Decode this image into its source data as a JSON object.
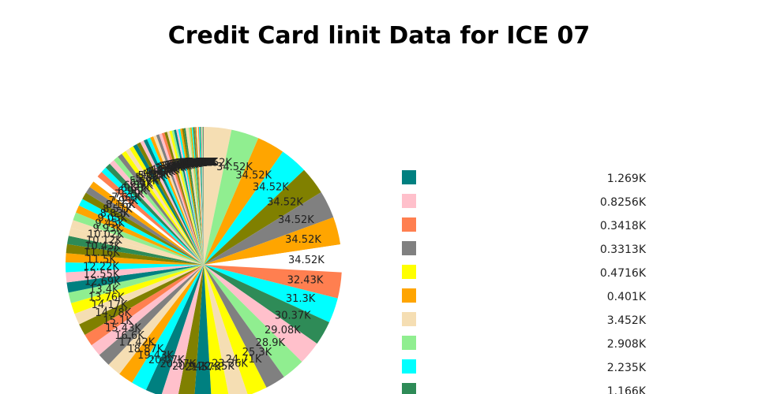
{
  "chart_data": {
    "type": "pie",
    "title": "Credit Card linit Data for ICE 07",
    "slice_palette": [
      "#f5deb3",
      "#90ee90",
      "#ffa500",
      "#00ffff",
      "#808000",
      "#808080",
      "#ffa500",
      "#ffffff",
      "#ff7f50",
      "#00ffff",
      "#2e8b57",
      "#ffc0cb",
      "#90ee90",
      "#808080",
      "#ffff00",
      "#f5deb3",
      "#ffff00",
      "#008080",
      "#808000",
      "#ffc0cb",
      "#008080",
      "#00ffff",
      "#ffa500",
      "#f5deb3",
      "#808080",
      "#ffc0cb",
      "#ff7f50",
      "#808000",
      "#f5deb3",
      "#ffff00",
      "#90ee90",
      "#008080",
      "#ffc0cb",
      "#00ffff",
      "#ffa500",
      "#808000",
      "#2e8b57",
      "#f5deb3"
    ],
    "slices": [
      {
        "label": "34.52K",
        "value": 34520
      },
      {
        "label": "34.52K",
        "value": 34520
      },
      {
        "label": "34.52K",
        "value": 34520
      },
      {
        "label": "34.52K",
        "value": 34520
      },
      {
        "label": "34.52K",
        "value": 34520
      },
      {
        "label": "34.52K",
        "value": 34520
      },
      {
        "label": "34.52K",
        "value": 34520
      },
      {
        "label": "34.52K",
        "value": 34520
      },
      {
        "label": "32.43K",
        "value": 32430
      },
      {
        "label": "31.3K",
        "value": 31300
      },
      {
        "label": "30.37K",
        "value": 30370
      },
      {
        "label": "29.08K",
        "value": 29080
      },
      {
        "label": "28.9K",
        "value": 28900
      },
      {
        "label": "25.3K",
        "value": 25300
      },
      {
        "label": "24.71K",
        "value": 24710
      },
      {
        "label": "23.36K",
        "value": 23360
      },
      {
        "label": "22.35K",
        "value": 22350
      },
      {
        "label": "21.57K",
        "value": 21570
      },
      {
        "label": "20.94K",
        "value": 20940
      },
      {
        "label": "20.37K",
        "value": 20370
      },
      {
        "label": "20.07K",
        "value": 20070
      },
      {
        "label": "19.43K",
        "value": 19430
      },
      {
        "label": "18.87K",
        "value": 18870
      },
      {
        "label": "17.42K",
        "value": 17420
      },
      {
        "label": "16.6K",
        "value": 16600
      },
      {
        "label": "15.43K",
        "value": 15430
      },
      {
        "label": "15.1K",
        "value": 15100
      },
      {
        "label": "14.78K",
        "value": 14780
      },
      {
        "label": "14.17K",
        "value": 14170
      },
      {
        "label": "13.76K",
        "value": 13760
      },
      {
        "label": "13.4K",
        "value": 13400
      },
      {
        "label": "12.69K",
        "value": 12690
      },
      {
        "label": "12.55K",
        "value": 12550
      },
      {
        "label": "12.22K",
        "value": 12220
      },
      {
        "label": "11.5K",
        "value": 11500
      },
      {
        "label": "11.16K",
        "value": 11160
      },
      {
        "label": "10.43K",
        "value": 10430
      },
      {
        "label": "10.12K",
        "value": 10120
      },
      {
        "label": "10.02K",
        "value": 10020
      },
      {
        "label": "9.93K",
        "value": 9930
      },
      {
        "label": "9.45K",
        "value": 9450
      },
      {
        "label": "9.05K",
        "value": 9050
      },
      {
        "label": "8.83K",
        "value": 8830
      },
      {
        "label": "8.51K",
        "value": 8510
      },
      {
        "label": "8.16K",
        "value": 8160
      },
      {
        "label": "7.93K",
        "value": 7930
      },
      {
        "label": "7.61K",
        "value": 7610
      },
      {
        "label": "7.25K",
        "value": 7250
      },
      {
        "label": "6.96K",
        "value": 6960
      },
      {
        "label": "6.68K",
        "value": 6680
      },
      {
        "label": "6.37K",
        "value": 6370
      },
      {
        "label": "6.1K",
        "value": 6100
      },
      {
        "label": "5.87K",
        "value": 5870
      },
      {
        "label": "5.6K",
        "value": 5600
      },
      {
        "label": "5.35K",
        "value": 5350
      },
      {
        "label": "5.11K",
        "value": 5110
      },
      {
        "label": "4.89K",
        "value": 4890
      },
      {
        "label": "4.68K",
        "value": 4680
      },
      {
        "label": "4.47K",
        "value": 4470
      },
      {
        "label": "4.27K",
        "value": 4270
      },
      {
        "label": "4.08K",
        "value": 4080
      },
      {
        "label": "3.9K",
        "value": 3900
      },
      {
        "label": "3.72K",
        "value": 3720
      },
      {
        "label": "3.55K",
        "value": 3550
      },
      {
        "label": "3.39K",
        "value": 3390
      },
      {
        "label": "3.24K",
        "value": 3240
      },
      {
        "label": "3.09K",
        "value": 3090
      },
      {
        "label": "2.95K",
        "value": 2950
      },
      {
        "label": "2.82K",
        "value": 2820
      },
      {
        "label": "2.69K",
        "value": 2690
      },
      {
        "label": "2.57K",
        "value": 2570
      },
      {
        "label": "2.45K",
        "value": 2450
      },
      {
        "label": "2.34K",
        "value": 2340
      },
      {
        "label": "2.23K",
        "value": 2230
      },
      {
        "label": "2.13K",
        "value": 2130
      },
      {
        "label": "2.03K",
        "value": 2030
      },
      {
        "label": "1.94K",
        "value": 1940
      },
      {
        "label": "1.85K",
        "value": 1850
      },
      {
        "label": "1.77K",
        "value": 1770
      },
      {
        "label": "1.69K",
        "value": 1690
      },
      {
        "label": "1.61K",
        "value": 1610
      },
      {
        "label": "1.54K",
        "value": 1540
      },
      {
        "label": "1.47K",
        "value": 1470
      },
      {
        "label": "1.4K",
        "value": 1400
      },
      {
        "label": "1.34K",
        "value": 1340
      },
      {
        "label": "1.28K",
        "value": 1280
      },
      {
        "label": "1.22K",
        "value": 1220
      },
      {
        "label": "1.16K",
        "value": 1160
      },
      {
        "label": "1.11K",
        "value": 1110
      },
      {
        "label": "1.06K",
        "value": 1060
      }
    ],
    "legend": {
      "placement": "right",
      "entries": [
        {
          "label": "1.269K",
          "color": "#008080"
        },
        {
          "label": "0.8256K",
          "color": "#ffc0cb"
        },
        {
          "label": "0.3418K",
          "color": "#ff7f50"
        },
        {
          "label": "0.3313K",
          "color": "#808080"
        },
        {
          "label": "0.4716K",
          "color": "#ffff00"
        },
        {
          "label": "0.401K",
          "color": "#ffa500"
        },
        {
          "label": "3.452K",
          "color": "#f5deb3"
        },
        {
          "label": "2.908K",
          "color": "#90ee90"
        },
        {
          "label": "2.235K",
          "color": "#00ffff"
        },
        {
          "label": "1.166K",
          "color": "#2e8b57"
        }
      ]
    }
  }
}
